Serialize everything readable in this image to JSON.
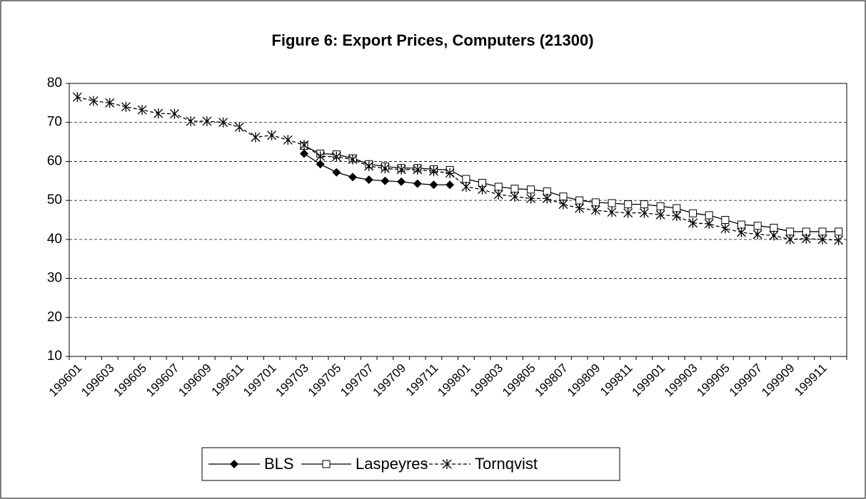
{
  "chart_data": {
    "type": "line",
    "title": "Figure 6: Export Prices, Computers (21300)",
    "categories": [
      "199601",
      null,
      "199603",
      null,
      "199605",
      null,
      "199607",
      null,
      "199609",
      null,
      "199611",
      null,
      "199701",
      null,
      "199703",
      null,
      "199705",
      null,
      "199707",
      null,
      "199709",
      null,
      "199711",
      null,
      "199801",
      null,
      "199803",
      null,
      "199805",
      null,
      "199807",
      null,
      "199809",
      null,
      "199811",
      null,
      "199901",
      null,
      "199903",
      null,
      "199905",
      null,
      "199907",
      null,
      "199909",
      null,
      "199911",
      null
    ],
    "series": [
      {
        "name": "BLS",
        "color": "#000000",
        "marker": "diamond",
        "dashed": false,
        "values": [
          null,
          null,
          null,
          null,
          null,
          null,
          null,
          null,
          null,
          null,
          null,
          null,
          null,
          null,
          62,
          59.3,
          57.2,
          56,
          55.3,
          55,
          54.8,
          54.3,
          54,
          54,
          null,
          null,
          null,
          null,
          null,
          null,
          null,
          null,
          null,
          null,
          null,
          null,
          null,
          null,
          null,
          null,
          null,
          null,
          null,
          null,
          null,
          null,
          null,
          null
        ]
      },
      {
        "name": "Laspeyres",
        "color": "#000000",
        "marker": "square",
        "dashed": false,
        "values": [
          null,
          null,
          null,
          null,
          null,
          null,
          null,
          null,
          null,
          null,
          null,
          null,
          null,
          null,
          64,
          62,
          61.8,
          60.8,
          59.3,
          58.7,
          58.3,
          58.3,
          58,
          57.8,
          55.5,
          54.5,
          53.5,
          53,
          52.8,
          52.3,
          51,
          50,
          49.5,
          49.3,
          49,
          49,
          48.5,
          48,
          46.7,
          46.2,
          45,
          43.8,
          43.5,
          43,
          42,
          42,
          42,
          42
        ]
      },
      {
        "name": "Tornqvist",
        "color": "#000000",
        "marker": "star",
        "dashed": true,
        "values": [
          76.5,
          75.5,
          75,
          74,
          73.2,
          72.3,
          72.2,
          70.3,
          70.3,
          70,
          68.8,
          66.2,
          66.7,
          65.5,
          64.2,
          61.3,
          61.2,
          60.5,
          58.8,
          58.2,
          57.9,
          57.9,
          57.5,
          57,
          53.5,
          52.8,
          51.5,
          51,
          50.5,
          50.5,
          49,
          48,
          47.5,
          47,
          46.8,
          46.8,
          46.3,
          46,
          44.2,
          44,
          42.8,
          41.8,
          41.3,
          41,
          40,
          40.2,
          40,
          39.8
        ]
      }
    ],
    "ylim": [
      10,
      80
    ],
    "yticks": [
      10,
      20,
      30,
      40,
      50,
      60,
      70,
      80
    ],
    "grid": true,
    "legend": "bottom"
  }
}
